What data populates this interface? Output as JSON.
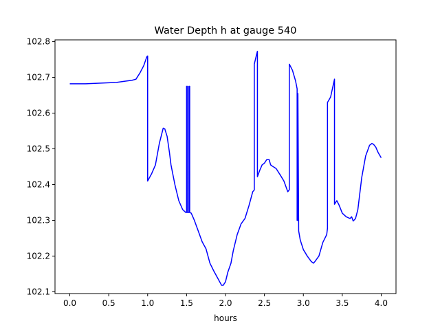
{
  "chart_data": {
    "type": "line",
    "title": "Water Depth h at gauge 540",
    "xlabel": "hours",
    "ylabel": "",
    "xlim": [
      -0.19,
      4.19
    ],
    "ylim": [
      102.095,
      102.805
    ],
    "xticks": [
      0.0,
      0.5,
      1.0,
      1.5,
      2.0,
      2.5,
      3.0,
      3.5,
      4.0
    ],
    "xtick_labels": [
      "0.0",
      "0.5",
      "1.0",
      "1.5",
      "2.0",
      "2.5",
      "3.0",
      "3.5",
      "4.0"
    ],
    "yticks": [
      102.1,
      102.2,
      102.3,
      102.4,
      102.5,
      102.6,
      102.7,
      102.8
    ],
    "ytick_labels": [
      "102.1",
      "102.2",
      "102.3",
      "102.4",
      "102.5",
      "102.6",
      "102.7",
      "102.8"
    ],
    "grid": false,
    "line_color": "#0000ff",
    "series": [
      {
        "x": [
          0.0,
          0.2,
          0.4,
          0.6,
          0.7,
          0.8,
          0.85,
          0.9,
          0.95,
          0.99,
          1.0,
          1.0,
          1.05,
          1.1,
          1.15,
          1.2,
          1.22,
          1.25,
          1.28,
          1.3,
          1.35,
          1.4,
          1.45,
          1.49,
          1.5,
          1.5,
          1.51,
          1.51,
          1.53,
          1.53,
          1.54,
          1.54,
          1.56,
          1.6,
          1.65,
          1.7,
          1.75,
          1.8,
          1.85,
          1.9,
          1.95,
          1.97,
          2.0,
          2.03,
          2.07,
          2.1,
          2.15,
          2.2,
          2.25,
          2.3,
          2.35,
          2.37,
          2.37,
          2.4,
          2.41,
          2.41,
          2.44,
          2.47,
          2.5,
          2.53,
          2.56,
          2.58,
          2.6,
          2.65,
          2.7,
          2.75,
          2.8,
          2.82,
          2.82,
          2.86,
          2.9,
          2.92,
          2.92,
          2.93,
          2.93,
          2.94,
          2.96,
          3.0,
          3.05,
          3.1,
          3.13,
          3.15,
          3.2,
          3.25,
          3.3,
          3.31,
          3.31,
          3.35,
          3.38,
          3.4,
          3.4,
          3.43,
          3.46,
          3.5,
          3.55,
          3.6,
          3.62,
          3.64,
          3.67,
          3.7,
          3.75,
          3.8,
          3.85,
          3.88,
          3.9,
          3.93,
          3.96,
          4.0
        ],
        "y": [
          102.682,
          102.682,
          102.684,
          102.686,
          102.689,
          102.692,
          102.695,
          102.712,
          102.733,
          102.758,
          102.76,
          102.41,
          102.43,
          102.455,
          102.515,
          102.558,
          102.556,
          102.535,
          102.49,
          102.455,
          102.4,
          102.355,
          102.33,
          102.322,
          102.322,
          102.675,
          102.675,
          102.322,
          102.322,
          102.675,
          102.675,
          102.322,
          102.32,
          102.3,
          102.27,
          102.24,
          102.22,
          102.18,
          102.158,
          102.138,
          102.118,
          102.118,
          102.128,
          102.155,
          102.18,
          102.215,
          102.26,
          102.29,
          102.305,
          102.34,
          102.38,
          102.385,
          102.737,
          102.765,
          102.773,
          102.422,
          102.44,
          102.455,
          102.46,
          102.47,
          102.47,
          102.455,
          102.452,
          102.445,
          102.428,
          102.41,
          102.38,
          102.386,
          102.737,
          102.72,
          102.69,
          102.668,
          102.3,
          102.3,
          102.655,
          102.27,
          102.245,
          102.218,
          102.2,
          102.185,
          102.18,
          102.185,
          102.2,
          102.238,
          102.26,
          102.278,
          102.63,
          102.645,
          102.675,
          102.695,
          102.345,
          102.355,
          102.342,
          102.32,
          102.31,
          102.305,
          102.31,
          102.298,
          102.305,
          102.33,
          102.42,
          102.48,
          102.51,
          102.515,
          102.513,
          102.505,
          102.49,
          102.475
        ]
      }
    ]
  }
}
